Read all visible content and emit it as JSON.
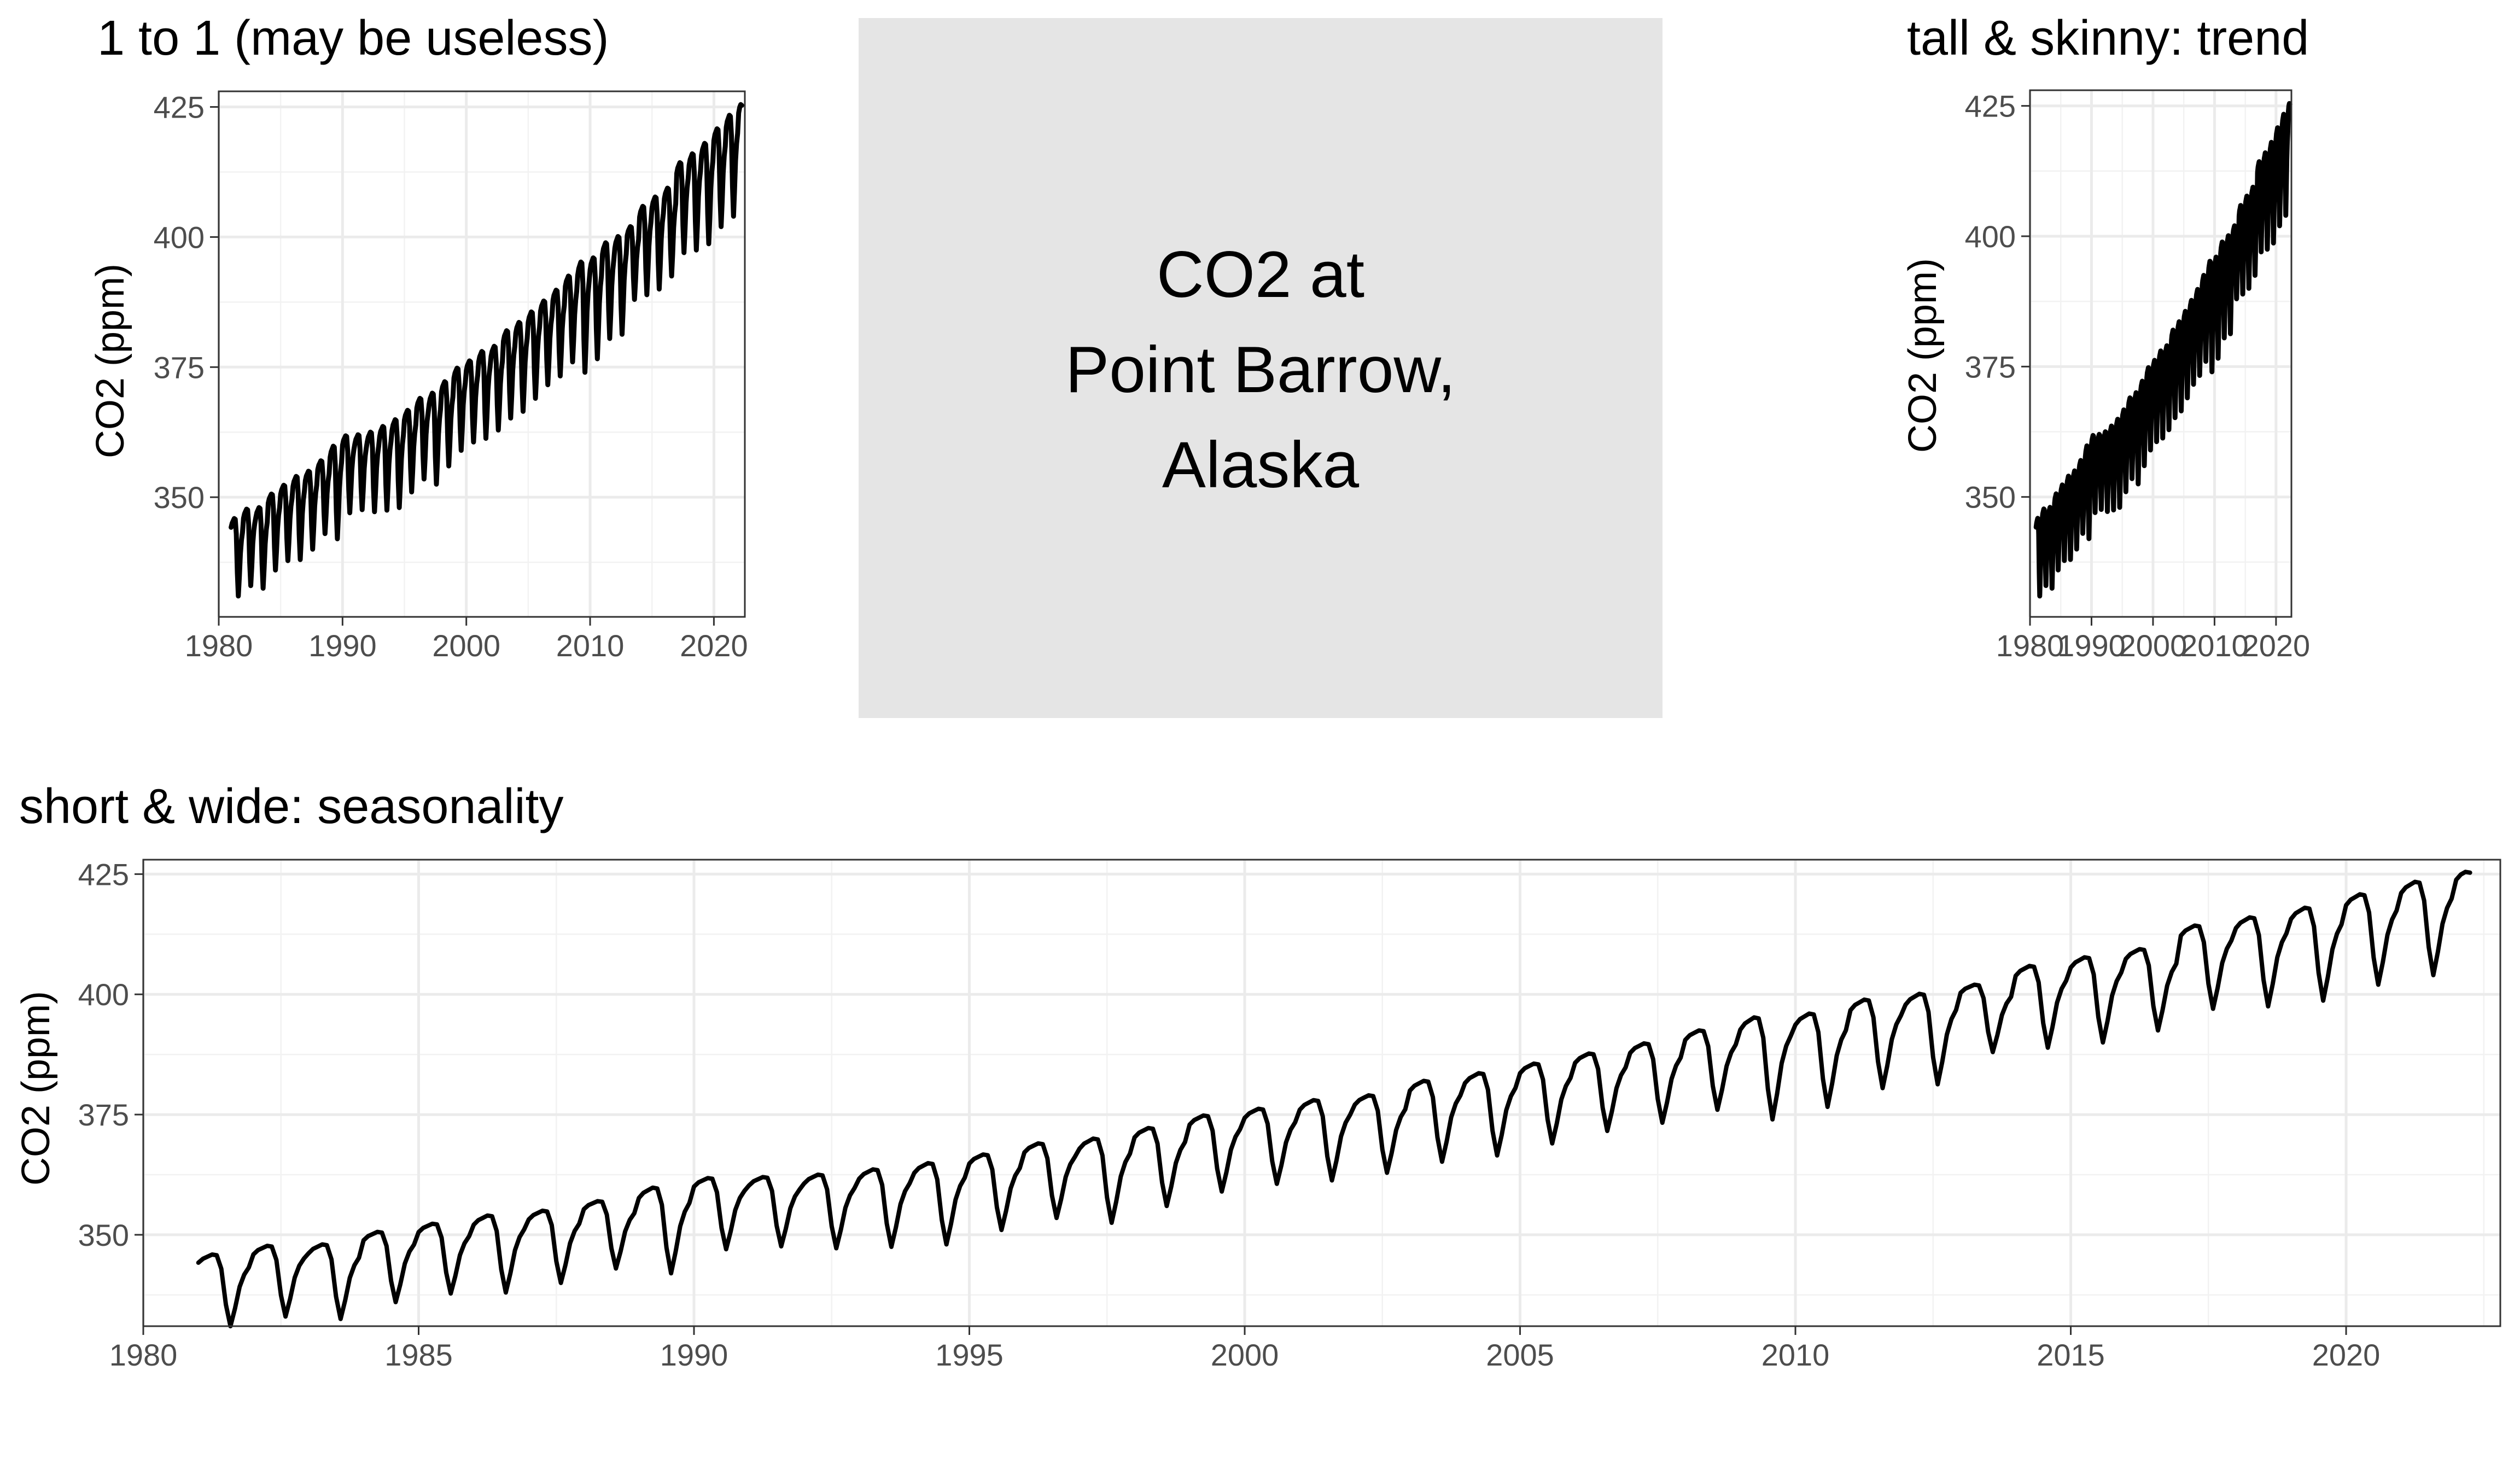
{
  "center_box": {
    "lines": [
      "CO2 at",
      "Point Barrow,",
      "Alaska"
    ],
    "fill_color": "#e5e5e5"
  },
  "colors": {
    "series": "#000000",
    "panel_background": "#ffffff",
    "grid": "#ebebeb",
    "axis_text": "#4d4d4d"
  },
  "chart_data": [
    {
      "id": "square",
      "type": "line",
      "title": "1 to 1 (may be useless)",
      "xlabel": "",
      "ylabel": "CO2 (ppm)",
      "xlim": [
        1980,
        2022.5
      ],
      "ylim": [
        327,
        428
      ],
      "xticks": [
        1980,
        1990,
        2000,
        2010,
        2020
      ],
      "yticks": [
        350,
        375,
        400,
        425
      ],
      "grid": true,
      "legend": "none",
      "series": [
        {
          "ref": "co2_series"
        }
      ]
    },
    {
      "id": "tall",
      "type": "line",
      "title": "tall & skinny:  trend",
      "xlabel": "",
      "ylabel": "CO2 (ppm)",
      "xlim": [
        1980,
        2022.5
      ],
      "ylim": [
        327,
        428
      ],
      "xticks": [
        1980,
        1990,
        2000,
        2010,
        2020
      ],
      "xtick_labels": [
        "1980",
        "1990",
        "2000",
        "2010",
        "2020"
      ],
      "yticks": [
        350,
        375,
        400,
        425
      ],
      "grid": true,
      "legend": "none",
      "series": [
        {
          "ref": "co2_series"
        }
      ]
    },
    {
      "id": "wide",
      "type": "line",
      "title": "short & wide: seasonality",
      "xlabel": "",
      "ylabel": "CO2 (ppm)",
      "xlim": [
        1980,
        2022.8
      ],
      "ylim": [
        331,
        428
      ],
      "xticks": [
        1980,
        1985,
        1990,
        1995,
        2000,
        2005,
        2010,
        2015,
        2020
      ],
      "yticks": [
        350,
        375,
        400,
        425
      ],
      "grid": true,
      "legend": "none",
      "series": [
        {
          "ref": "co2_series"
        }
      ]
    }
  ],
  "co2_series": {
    "x_start": 1981.0,
    "x_end": 2022.33,
    "y_start": 344.2,
    "y_end": 425.3,
    "annual_max": [
      [
        1981,
        345.9
      ],
      [
        1982,
        347.7
      ],
      [
        1983,
        348.0
      ],
      [
        1984,
        350.6
      ],
      [
        1985,
        352.3
      ],
      [
        1986,
        354.0
      ],
      [
        1987,
        355.0
      ],
      [
        1988,
        357.0
      ],
      [
        1989,
        359.8
      ],
      [
        1990,
        361.8
      ],
      [
        1991,
        362.0
      ],
      [
        1992,
        362.5
      ],
      [
        1993,
        363.6
      ],
      [
        1994,
        364.9
      ],
      [
        1995,
        366.7
      ],
      [
        1996,
        369.0
      ],
      [
        1997,
        370.0
      ],
      [
        1998,
        372.2
      ],
      [
        1999,
        374.8
      ],
      [
        2000,
        376.2
      ],
      [
        2001,
        378.0
      ],
      [
        2002,
        379.0
      ],
      [
        2003,
        382.0
      ],
      [
        2004,
        383.6
      ],
      [
        2005,
        385.6
      ],
      [
        2006,
        387.7
      ],
      [
        2007,
        389.8
      ],
      [
        2008,
        392.5
      ],
      [
        2009,
        395.2
      ],
      [
        2010,
        396.0
      ],
      [
        2011,
        398.9
      ],
      [
        2012,
        400.1
      ],
      [
        2013,
        402.0
      ],
      [
        2014,
        405.9
      ],
      [
        2015,
        407.7
      ],
      [
        2016,
        409.4
      ],
      [
        2017,
        414.3
      ],
      [
        2018,
        416.0
      ],
      [
        2019,
        418.0
      ],
      [
        2020,
        420.8
      ],
      [
        2021,
        423.4
      ],
      [
        2022,
        426.0
      ]
    ],
    "annual_min": [
      [
        1981,
        331.0
      ],
      [
        1982,
        333.0
      ],
      [
        1983,
        332.5
      ],
      [
        1984,
        336.0
      ],
      [
        1985,
        337.8
      ],
      [
        1986,
        338.0
      ],
      [
        1987,
        340.0
      ],
      [
        1988,
        343.0
      ],
      [
        1989,
        342.0
      ],
      [
        1990,
        347.0
      ],
      [
        1991,
        347.6
      ],
      [
        1992,
        347.2
      ],
      [
        1993,
        347.5
      ],
      [
        1994,
        348.0
      ],
      [
        1995,
        351.0
      ],
      [
        1996,
        353.5
      ],
      [
        1997,
        352.5
      ],
      [
        1998,
        356.0
      ],
      [
        1999,
        359.0
      ],
      [
        2000,
        360.6
      ],
      [
        2001,
        361.3
      ],
      [
        2002,
        362.9
      ],
      [
        2003,
        365.2
      ],
      [
        2004,
        366.5
      ],
      [
        2005,
        369.0
      ],
      [
        2006,
        371.6
      ],
      [
        2007,
        373.3
      ],
      [
        2008,
        376.0
      ],
      [
        2009,
        374.0
      ],
      [
        2010,
        376.6
      ],
      [
        2011,
        380.5
      ],
      [
        2012,
        381.3
      ],
      [
        2013,
        388.0
      ],
      [
        2014,
        388.9
      ],
      [
        2015,
        390.0
      ],
      [
        2016,
        392.5
      ],
      [
        2017,
        397.0
      ],
      [
        2018,
        397.5
      ],
      [
        2019,
        398.7
      ],
      [
        2020,
        402.0
      ],
      [
        2021,
        404.0
      ]
    ]
  }
}
